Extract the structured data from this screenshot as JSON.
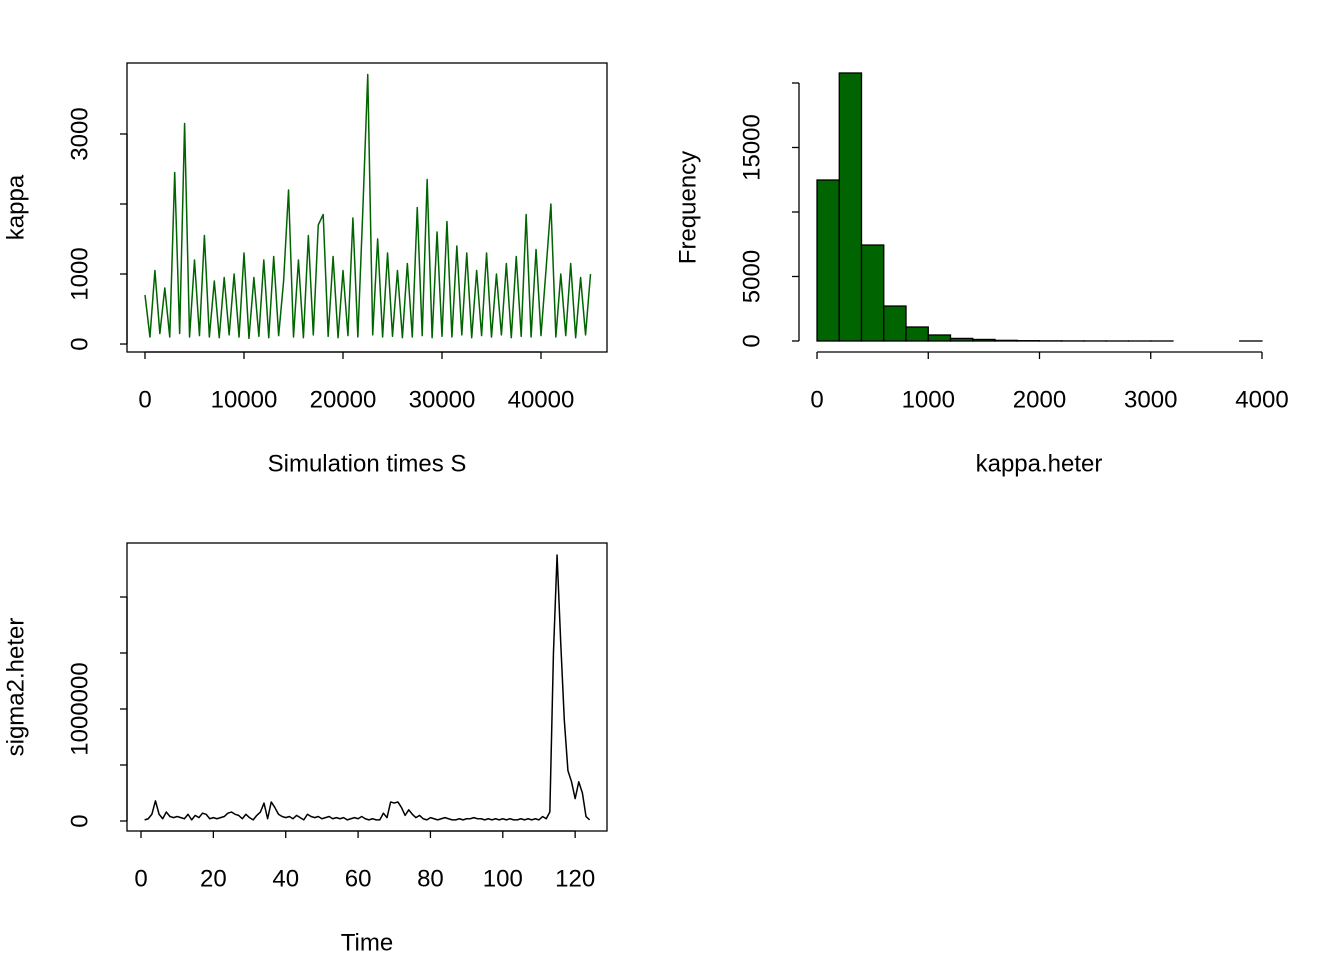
{
  "chart_data": [
    {
      "type": "line",
      "xlabel": "Simulation times S",
      "ylabel": "kappa",
      "color": "#006400",
      "box": true,
      "x": [
        0,
        500,
        1000,
        1500,
        2000,
        2500,
        3000,
        3500,
        4000,
        4500,
        5000,
        5500,
        6000,
        6500,
        7000,
        7500,
        8000,
        8500,
        9000,
        9500,
        10000,
        10500,
        11000,
        11500,
        12000,
        12500,
        13000,
        13500,
        14000,
        14500,
        15000,
        15500,
        16000,
        16500,
        17000,
        17500,
        18000,
        18500,
        19000,
        19500,
        20000,
        20500,
        21000,
        21500,
        22000,
        22500,
        23000,
        23500,
        24000,
        24500,
        25000,
        25500,
        26000,
        26500,
        27000,
        27500,
        28000,
        28500,
        29000,
        29500,
        30000,
        30500,
        31000,
        31500,
        32000,
        32500,
        33000,
        33500,
        34000,
        34500,
        35000,
        35500,
        36000,
        36500,
        37000,
        37500,
        38000,
        38500,
        39000,
        39500,
        40000,
        40500,
        41000,
        41500,
        42000,
        42500,
        43000,
        43500,
        44000,
        44500,
        45000
      ],
      "values": [
        700,
        100,
        1050,
        150,
        800,
        100,
        2450,
        150,
        3150,
        100,
        1200,
        120,
        1550,
        100,
        900,
        90,
        950,
        130,
        1000,
        100,
        1300,
        80,
        950,
        110,
        1200,
        90,
        1250,
        120,
        900,
        2200,
        100,
        1200,
        90,
        1550,
        130,
        1700,
        1850,
        110,
        1250,
        90,
        1050,
        120,
        1800,
        100,
        1900,
        3850,
        130,
        1500,
        100,
        1300,
        110,
        1050,
        90,
        1150,
        100,
        1950,
        120,
        2350,
        90,
        1600,
        110,
        1750,
        100,
        1400,
        130,
        1300,
        90,
        1050,
        120,
        1300,
        100,
        1000,
        130,
        1150,
        90,
        1250,
        110,
        1850,
        100,
        1350,
        120,
        1050,
        2000,
        100,
        1000,
        120,
        1150,
        90,
        950,
        130,
        1000
      ],
      "xlim": [
        -1818,
        46667
      ],
      "xticks": [
        0,
        10000,
        20000,
        30000,
        40000
      ],
      "ylim": [
        -114,
        4014
      ],
      "yticks": [
        0,
        1000,
        {
          "value": 2000,
          "label": null
        },
        3000
      ]
    },
    {
      "type": "histogram",
      "xlabel": "kappa.heter",
      "ylabel": "Frequency",
      "color": "#006400",
      "box": false,
      "bins": [
        0,
        200,
        400,
        600,
        800,
        1000,
        1200,
        1400,
        1600,
        1800,
        2000,
        2200,
        2400,
        2600,
        2800,
        3000,
        3200,
        3400,
        3600,
        3800,
        4000
      ],
      "values": [
        12480,
        20775,
        7440,
        2710,
        1085,
        465,
        200,
        120,
        50,
        25,
        12,
        6,
        3,
        2,
        1,
        1,
        0,
        0,
        0,
        1
      ],
      "xlim": [
        -162,
        4153
      ],
      "xticks": [
        0,
        1000,
        2000,
        3000,
        4000
      ],
      "ylim": [
        -853,
        21550
      ],
      "yticks": [
        0,
        5000,
        {
          "value": 10000,
          "label": null
        },
        15000,
        {
          "value": 20000,
          "label": null
        }
      ]
    },
    {
      "type": "line",
      "xlabel": "Time",
      "ylabel": "sigma2.heter",
      "color": "#000000",
      "box": true,
      "x": [
        1,
        2,
        3,
        4,
        5,
        6,
        7,
        8,
        9,
        10,
        11,
        12,
        13,
        14,
        15,
        16,
        17,
        18,
        19,
        20,
        21,
        22,
        23,
        24,
        25,
        26,
        27,
        28,
        29,
        30,
        31,
        32,
        33,
        34,
        35,
        36,
        37,
        38,
        39,
        40,
        41,
        42,
        43,
        44,
        45,
        46,
        47,
        48,
        49,
        50,
        51,
        52,
        53,
        54,
        55,
        56,
        57,
        58,
        59,
        60,
        61,
        62,
        63,
        64,
        65,
        66,
        67,
        68,
        69,
        70,
        71,
        72,
        73,
        74,
        75,
        76,
        77,
        78,
        79,
        80,
        81,
        82,
        83,
        84,
        85,
        86,
        87,
        88,
        89,
        90,
        91,
        92,
        93,
        94,
        95,
        96,
        97,
        98,
        99,
        100,
        101,
        102,
        103,
        104,
        105,
        106,
        107,
        108,
        109,
        110,
        111,
        112,
        113,
        114,
        115,
        116,
        117,
        118,
        119,
        120,
        121,
        122,
        123,
        124
      ],
      "values": [
        10000,
        20000,
        60000,
        180000,
        60000,
        20000,
        80000,
        40000,
        30000,
        40000,
        30000,
        20000,
        60000,
        10000,
        50000,
        30000,
        70000,
        60000,
        20000,
        30000,
        20000,
        30000,
        40000,
        70000,
        80000,
        60000,
        50000,
        20000,
        60000,
        30000,
        10000,
        50000,
        80000,
        160000,
        20000,
        170000,
        120000,
        60000,
        40000,
        30000,
        40000,
        20000,
        50000,
        30000,
        10000,
        60000,
        40000,
        30000,
        40000,
        20000,
        30000,
        40000,
        20000,
        30000,
        20000,
        30000,
        10000,
        20000,
        30000,
        20000,
        40000,
        20000,
        10000,
        20000,
        10000,
        10000,
        70000,
        30000,
        170000,
        160000,
        170000,
        120000,
        50000,
        100000,
        60000,
        30000,
        50000,
        20000,
        10000,
        30000,
        20000,
        10000,
        20000,
        30000,
        20000,
        10000,
        10000,
        20000,
        10000,
        20000,
        20000,
        30000,
        20000,
        20000,
        10000,
        20000,
        10000,
        20000,
        10000,
        20000,
        10000,
        20000,
        10000,
        10000,
        20000,
        10000,
        20000,
        10000,
        20000,
        10000,
        40000,
        20000,
        80000,
        1500000,
        2375000,
        1600000,
        900000,
        450000,
        350000,
        200000,
        350000,
        250000,
        40000,
        10000
      ],
      "xlim": [
        -3.87,
        128.8
      ],
      "xticks": [
        0,
        20,
        40,
        60,
        80,
        100,
        120
      ],
      "ylim": [
        -89286,
        2482143
      ],
      "yticks": [
        0,
        {
          "value": 500000,
          "label": null
        },
        1000000,
        {
          "value": 1500000,
          "label": null
        },
        {
          "value": 2000000,
          "label": null
        }
      ]
    }
  ]
}
